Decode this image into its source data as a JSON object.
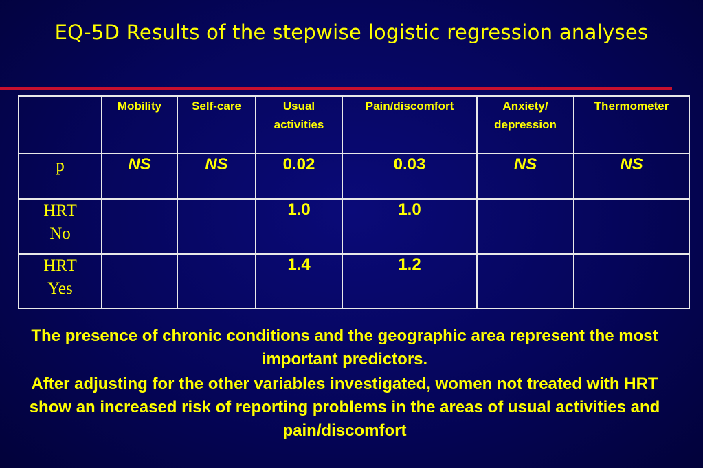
{
  "title": "EQ-5D Results of the stepwise logistic regression analyses",
  "table": {
    "columns": [
      "",
      "Mobility",
      "Self-care",
      "Usual activities",
      "Pain/discomfort",
      "Anxiety/ depression",
      "Thermometer"
    ],
    "column_lines": {
      "usual": [
        "Usual",
        "activities"
      ],
      "anxiety": [
        "Anxiety/",
        "depression"
      ]
    },
    "rows": [
      {
        "label": "p",
        "label_lines": [
          "p"
        ],
        "cells": [
          "NS",
          "NS",
          "0.02",
          "0.03",
          "NS",
          "NS"
        ]
      },
      {
        "label": "HRT No",
        "label_lines": [
          "HRT",
          "No"
        ],
        "cells": [
          "",
          "",
          "1.0",
          "1.0",
          "",
          ""
        ]
      },
      {
        "label": "HRT Yes",
        "label_lines": [
          "HRT",
          "Yes"
        ],
        "cells": [
          "",
          "",
          "1.4",
          "1.2",
          "",
          ""
        ]
      }
    ]
  },
  "paragraphs": [
    "The presence of chronic conditions and the geographic area represent the most important predictors.",
    "After adjusting for the other variables investigated, women not treated with HRT show an increased risk of reporting problems in the areas of usual activities and pain/discomfort"
  ],
  "colors": {
    "background": "#05055a",
    "text": "#ffff00",
    "rule": "#c8102e",
    "grid": "#e8e8e8"
  }
}
